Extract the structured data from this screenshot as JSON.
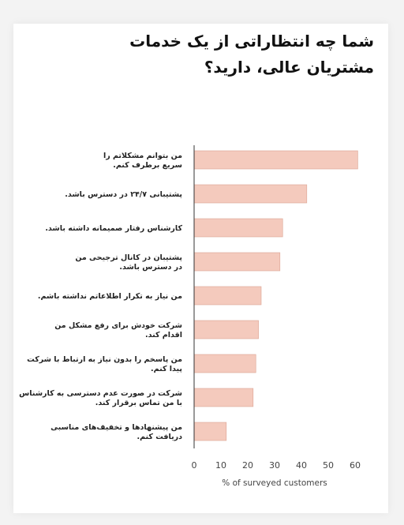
{
  "chart_data": {
    "type": "bar",
    "orientation": "horizontal",
    "title": "شما چه انتظاراتی از یک خدمات مشتریان عالی، دارید؟",
    "xlabel": "% of surveyed customers",
    "ylabel": "",
    "xlim": [
      0,
      62
    ],
    "xticks": [
      0,
      10,
      20,
      30,
      40,
      50,
      60
    ],
    "grid": false,
    "bar_color": "#f4cabd",
    "categories": [
      [
        "من بتوانم مشکلاتم را",
        "سریع برطرف کنم."
      ],
      [
        "پشتیبانی ۲۴/۷ در دسترس باشد."
      ],
      [
        "کارشناس رفتار صمیمانه داشته باشد."
      ],
      [
        "پشتیبان در کانال ترجیحی من",
        "در دسترس باشد."
      ],
      [
        "من نیاز به تکرار اطلاعاتم نداشته باشم."
      ],
      [
        "شرکت خودش برای رفع مشکل من",
        "اقدام کند."
      ],
      [
        "من پاسخم را بدون نیاز به ارتباط با شرکت",
        "پیدا کنم."
      ],
      [
        "شرکت در صورت عدم دسترسی به کارشناس",
        "با من تماس برقرار کند."
      ],
      [
        "من پیشنهادها و تخفیف‌های مناسبی",
        "دریافت کنم."
      ]
    ],
    "values": [
      61,
      42,
      33,
      32,
      25,
      24,
      23,
      22,
      12
    ]
  }
}
